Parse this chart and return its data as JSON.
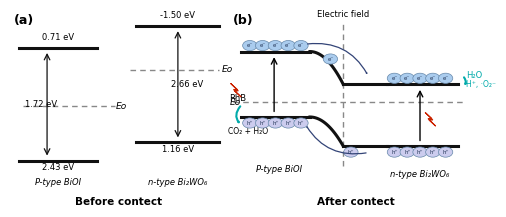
{
  "title_a": "(a)",
  "title_b": "(b)",
  "bottom_a": "Before contect",
  "bottom_b": "After contect",
  "p_bioi_label": "P-type BiOI",
  "n_bi2wo6_label": "n-type Bi₂WO₆",
  "ef_label": "Eᴏ",
  "electric_field": "Electric field",
  "h2o_label": "H₂O",
  "hplus_label": "H⁺, ·O₂⁻",
  "rhb_label": "RhB",
  "co2_label": "CO₂ + H₂O",
  "bg_color": "#ffffff",
  "band_color": "#111111",
  "ef_color": "#888888",
  "arrow_color": "#111111",
  "electron_color": "#aaccee",
  "hole_color": "#ccccee",
  "cyan_color": "#00aaaa",
  "lightning_green": "#556600",
  "lightning_red": "#cc2200"
}
